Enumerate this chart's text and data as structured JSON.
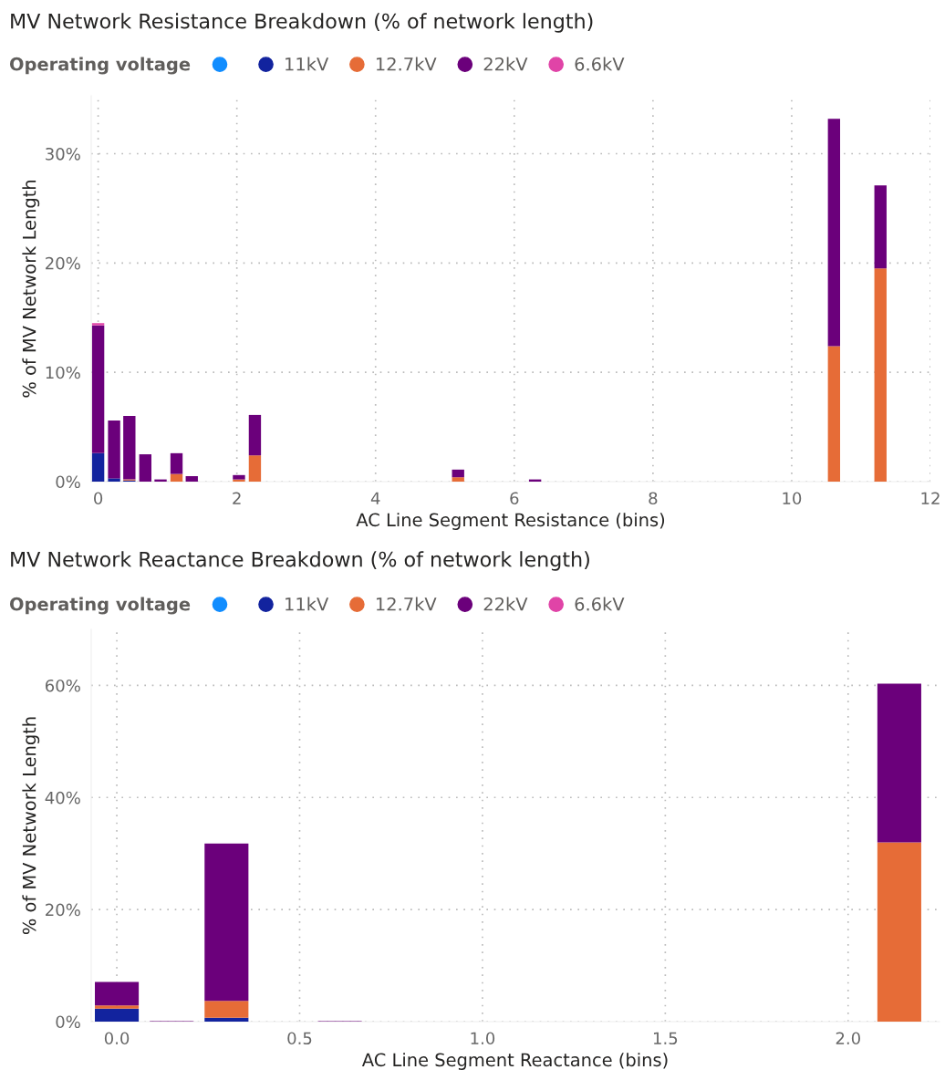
{
  "chart_data": [
    {
      "type": "bar",
      "title": "MV Network Resistance Breakdown (% of network length)",
      "xlabel": "AC Line Segment Resistance (bins)",
      "ylabel": "% of MV Network Length",
      "legend_title": "Operating voltage",
      "legend": "top left",
      "grid": true,
      "stacked": true,
      "x": [
        0,
        0.23,
        0.45,
        0.68,
        0.9,
        1.13,
        1.35,
        2.03,
        2.26,
        5.19,
        6.3,
        10.61,
        11.28
      ],
      "xlim": [
        -0.1,
        12
      ],
      "xticks": [
        0,
        2,
        4,
        6,
        8,
        10,
        12
      ],
      "ylim": [
        0,
        35.3
      ],
      "yticks": [
        {
          "value": 0,
          "label": "0%"
        },
        {
          "value": 10,
          "label": "10%"
        },
        {
          "value": 20,
          "label": "20%"
        },
        {
          "value": 30,
          "label": "30%"
        }
      ],
      "series": [
        {
          "color": "#118dff",
          "values": [
            null,
            null,
            null,
            null,
            null,
            null,
            null,
            null,
            null,
            null,
            null,
            null,
            null
          ]
        },
        {
          "name": "11kV",
          "color": "#12239e",
          "values": [
            2.6,
            0.3,
            0.1,
            null,
            null,
            null,
            null,
            null,
            null,
            null,
            null,
            null,
            null
          ]
        },
        {
          "name": "12.7kV",
          "color": "#e66c37",
          "values": [
            null,
            null,
            0.1,
            null,
            null,
            0.7,
            null,
            0.2,
            2.4,
            0.4,
            null,
            12.4,
            19.5
          ]
        },
        {
          "name": "22kV",
          "color": "#6b007b",
          "values": [
            11.7,
            5.3,
            5.8,
            2.5,
            0.2,
            1.9,
            0.5,
            0.4,
            3.7,
            0.7,
            0.2,
            20.8,
            7.6
          ]
        },
        {
          "name": "6.6kV",
          "color": "#e044a7",
          "values": [
            0.2,
            null,
            null,
            null,
            null,
            null,
            null,
            null,
            null,
            null,
            null,
            null,
            null
          ]
        }
      ]
    },
    {
      "type": "bar",
      "title": "MV Network Reactance Breakdown (% of network length)",
      "xlabel": "AC Line Segment Reactance (bins)",
      "ylabel": "% of MV Network Length",
      "legend_title": "Operating voltage",
      "legend": "top left",
      "grid": true,
      "stacked": true,
      "x": [
        0,
        0.15,
        0.3,
        0.61,
        2.14
      ],
      "xlim": [
        -0.07,
        2.25
      ],
      "xticks": [
        {
          "value": 0,
          "label": "0.0"
        },
        0.5,
        {
          "value": 1,
          "label": "1.0"
        },
        1.5,
        {
          "value": 2,
          "label": "2.0"
        }
      ],
      "ylim": [
        0,
        70
      ],
      "yticks": [
        {
          "value": 0,
          "label": "0%"
        },
        {
          "value": 20,
          "label": "20%"
        },
        {
          "value": 40,
          "label": "40%"
        },
        {
          "value": 60,
          "label": "60%"
        }
      ],
      "series": [
        {
          "color": "#118dff",
          "values": [
            null,
            null,
            null,
            null,
            null
          ]
        },
        {
          "name": "11kV",
          "color": "#12239e",
          "values": [
            2.3,
            null,
            0.7,
            null,
            null
          ]
        },
        {
          "name": "12.7kV",
          "color": "#e66c37",
          "values": [
            0.6,
            null,
            3.0,
            null,
            32.0
          ]
        },
        {
          "name": "22kV",
          "color": "#6b007b",
          "values": [
            4.2,
            0.1,
            28.1,
            0.1,
            28.3
          ]
        },
        {
          "name": "6.6kV",
          "color": "#e044a7",
          "values": [
            null,
            null,
            null,
            null,
            null
          ]
        }
      ]
    }
  ]
}
